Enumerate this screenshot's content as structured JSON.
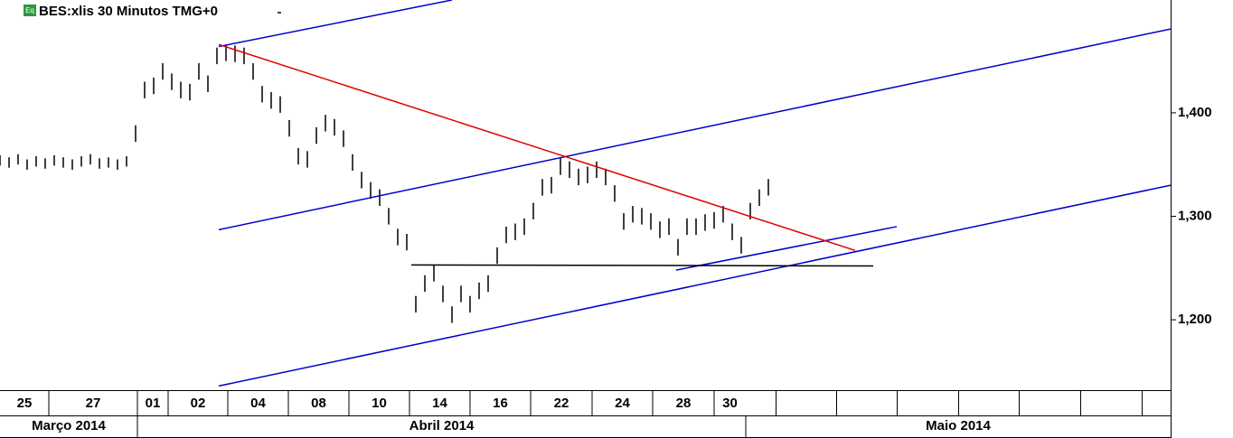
{
  "chart_data": {
    "type": "ohlc",
    "title": "BES:xlis 30 Minutos TMG+0",
    "badge": "Eq",
    "xlim": [
      0,
      259
    ],
    "ylim": [
      1.132,
      1.509
    ],
    "yticks": [
      {
        "value": 1.2,
        "label": "1,200"
      },
      {
        "value": 1.3,
        "label": "1,300"
      },
      {
        "value": 1.4,
        "label": "1,400"
      }
    ],
    "xticks": [
      {
        "value": 0,
        "label": "25"
      },
      {
        "value": 10.8,
        "label": "27"
      },
      {
        "value": 30.4,
        "label": "01"
      },
      {
        "value": 37.2,
        "label": "02"
      },
      {
        "value": 50.4,
        "label": "04"
      },
      {
        "value": 63.8,
        "label": "08"
      },
      {
        "value": 77.2,
        "label": "10"
      },
      {
        "value": 90.6,
        "label": "14"
      },
      {
        "value": 104,
        "label": "16"
      },
      {
        "value": 117.4,
        "label": "22"
      },
      {
        "value": 131,
        "label": "24"
      },
      {
        "value": 144.4,
        "label": "28"
      },
      {
        "value": 158,
        "label": "30"
      }
    ],
    "month_ticks": [
      {
        "value": 0,
        "label": "Março 2014"
      },
      {
        "value": 30.4,
        "label": "Abril 2014"
      },
      {
        "value": 165,
        "label": "Maio 2014"
      }
    ],
    "color": "#000000",
    "x": [
      0,
      2,
      4,
      6,
      8,
      10,
      12,
      14,
      16,
      18,
      20,
      22,
      24,
      26,
      28,
      30,
      32,
      34,
      36,
      38,
      40,
      42,
      44,
      46,
      48,
      50,
      52,
      54,
      56,
      58,
      60,
      62,
      64,
      66,
      68,
      70,
      72,
      74,
      76,
      78,
      80,
      82,
      84,
      86,
      88,
      90,
      92,
      94,
      96,
      98,
      100,
      102,
      104,
      106,
      108,
      110,
      112,
      114,
      116,
      118,
      120,
      122,
      124,
      126,
      128,
      130,
      132,
      134,
      136,
      138,
      140,
      142,
      144,
      146,
      148,
      150,
      152,
      154,
      156,
      158,
      160,
      162,
      164,
      166,
      168,
      170
    ],
    "high": [
      1.359,
      1.357,
      1.36,
      1.355,
      1.358,
      1.356,
      1.359,
      1.357,
      1.355,
      1.358,
      1.36,
      1.356,
      1.357,
      1.355,
      1.358,
      1.388,
      1.43,
      1.434,
      1.448,
      1.438,
      1.43,
      1.428,
      1.448,
      1.436,
      1.463,
      1.466,
      1.465,
      1.463,
      1.448,
      1.426,
      1.42,
      1.416,
      1.393,
      1.366,
      1.363,
      1.386,
      1.398,
      1.394,
      1.383,
      1.36,
      1.343,
      1.333,
      1.326,
      1.308,
      1.288,
      1.283,
      1.223,
      1.243,
      1.253,
      1.233,
      1.213,
      1.233,
      1.223,
      1.236,
      1.243,
      1.27,
      1.29,
      1.293,
      1.298,
      1.313,
      1.336,
      1.338,
      1.356,
      1.353,
      1.346,
      1.348,
      1.353,
      1.346,
      1.33,
      1.303,
      1.31,
      1.308,
      1.303,
      1.295,
      1.298,
      1.278,
      1.298,
      1.298,
      1.302,
      1.304,
      1.31,
      1.293,
      1.28,
      1.313,
      1.326,
      1.336
    ],
    "low": [
      1.349,
      1.347,
      1.35,
      1.345,
      1.348,
      1.346,
      1.349,
      1.347,
      1.345,
      1.348,
      1.35,
      1.346,
      1.347,
      1.345,
      1.348,
      1.372,
      1.414,
      1.418,
      1.432,
      1.422,
      1.414,
      1.412,
      1.432,
      1.42,
      1.447,
      1.45,
      1.449,
      1.447,
      1.432,
      1.41,
      1.404,
      1.4,
      1.377,
      1.35,
      1.347,
      1.37,
      1.382,
      1.378,
      1.367,
      1.344,
      1.327,
      1.317,
      1.31,
      1.292,
      1.272,
      1.267,
      1.207,
      1.227,
      1.237,
      1.217,
      1.197,
      1.217,
      1.207,
      1.22,
      1.227,
      1.254,
      1.274,
      1.277,
      1.282,
      1.297,
      1.32,
      1.322,
      1.34,
      1.337,
      1.33,
      1.332,
      1.337,
      1.33,
      1.314,
      1.287,
      1.294,
      1.292,
      1.287,
      1.279,
      1.282,
      1.262,
      1.282,
      1.282,
      1.286,
      1.288,
      1.294,
      1.277,
      1.264,
      1.297,
      1.31,
      1.32
    ],
    "lines": [
      {
        "color": "#0000cc",
        "x": [
          48.4,
          100
        ],
        "y": [
          1.464,
          1.509
        ]
      },
      {
        "color": "#0000cc",
        "x": [
          48.4,
          259
        ],
        "y": [
          1.287,
          1.481
        ]
      },
      {
        "color": "#0000cc",
        "x": [
          48.4,
          259
        ],
        "y": [
          1.136,
          1.33
        ]
      },
      {
        "color": "#0000cc",
        "x": [
          149.6,
          198.4
        ],
        "y": [
          1.248,
          1.29
        ]
      },
      {
        "color": "#e00000",
        "x": [
          48.4,
          189.2
        ],
        "y": [
          1.466,
          1.267
        ]
      },
      {
        "color": "#000000",
        "x": [
          91,
          193.2
        ],
        "y": [
          1.253,
          1.252
        ]
      }
    ]
  }
}
